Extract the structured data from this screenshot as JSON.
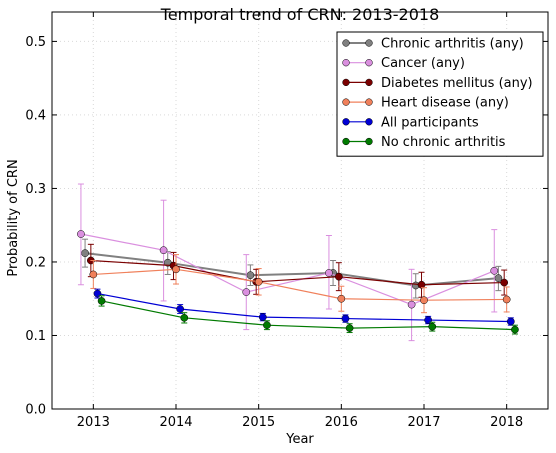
{
  "chart_data": {
    "type": "line",
    "title": "Temporal trend of CRN: 2013-2018",
    "xlabel": "Year",
    "ylabel": "Probability of CRN",
    "xlim": [
      2012.5,
      2018.5
    ],
    "ylim": [
      0.0,
      0.54
    ],
    "xticks": [
      "2013",
      "2014",
      "2015",
      "2016",
      "2017",
      "2018"
    ],
    "yticks": [
      "0.0",
      "0.1",
      "0.2",
      "0.3",
      "0.4",
      "0.5"
    ],
    "grid": true,
    "legend_position": "top-right",
    "series": [
      {
        "name": "Chronic arthritis (any)",
        "color": "#808080",
        "x": [
          2012.9,
          2013.9,
          2014.9,
          2015.9,
          2016.9,
          2017.9
        ],
        "y": [
          0.212,
          0.199,
          0.182,
          0.185,
          0.168,
          0.178
        ],
        "err_low": [
          0.193,
          0.183,
          0.168,
          0.168,
          0.151,
          0.161
        ],
        "err_high": [
          0.231,
          0.214,
          0.196,
          0.202,
          0.184,
          0.194
        ]
      },
      {
        "name": "Cancer (any)",
        "color": "#da8fdf",
        "x": [
          2012.85,
          2013.85,
          2014.85,
          2015.85,
          2016.85,
          2017.85
        ],
        "y": [
          0.238,
          0.216,
          0.159,
          0.185,
          0.142,
          0.188
        ],
        "err_low": [
          0.169,
          0.147,
          0.108,
          0.136,
          0.093,
          0.132
        ],
        "err_high": [
          0.306,
          0.284,
          0.21,
          0.236,
          0.19,
          0.244
        ]
      },
      {
        "name": "Diabetes mellitus (any)",
        "color": "#7a0000",
        "x": [
          2012.97,
          2013.97,
          2014.97,
          2015.97,
          2016.97,
          2017.97
        ],
        "y": [
          0.202,
          0.195,
          0.173,
          0.18,
          0.169,
          0.172
        ],
        "err_low": [
          0.18,
          0.176,
          0.156,
          0.161,
          0.152,
          0.155
        ],
        "err_high": [
          0.224,
          0.213,
          0.19,
          0.199,
          0.186,
          0.189
        ]
      },
      {
        "name": "Heart disease (any)",
        "color": "#f0805b",
        "x": [
          2013.0,
          2014.0,
          2015.0,
          2016.0,
          2017.0,
          2018.0
        ],
        "y": [
          0.183,
          0.19,
          0.173,
          0.15,
          0.148,
          0.149
        ],
        "err_low": [
          0.164,
          0.17,
          0.155,
          0.133,
          0.131,
          0.132
        ],
        "err_high": [
          0.202,
          0.21,
          0.191,
          0.167,
          0.165,
          0.166
        ]
      },
      {
        "name": "All participants",
        "color": "#0000d4",
        "x": [
          2013.05,
          2014.05,
          2015.05,
          2016.05,
          2017.05,
          2018.05
        ],
        "y": [
          0.157,
          0.136,
          0.125,
          0.123,
          0.121,
          0.119
        ],
        "err_low": [
          0.151,
          0.13,
          0.12,
          0.118,
          0.116,
          0.114
        ],
        "err_high": [
          0.163,
          0.142,
          0.13,
          0.128,
          0.126,
          0.124
        ]
      },
      {
        "name": "No chronic arthritis",
        "color": "#007a00",
        "x": [
          2013.1,
          2014.1,
          2015.1,
          2016.1,
          2017.1,
          2018.1
        ],
        "y": [
          0.147,
          0.124,
          0.114,
          0.11,
          0.112,
          0.108
        ],
        "err_low": [
          0.14,
          0.117,
          0.108,
          0.104,
          0.106,
          0.102
        ],
        "err_high": [
          0.154,
          0.131,
          0.12,
          0.116,
          0.118,
          0.114
        ]
      }
    ]
  }
}
